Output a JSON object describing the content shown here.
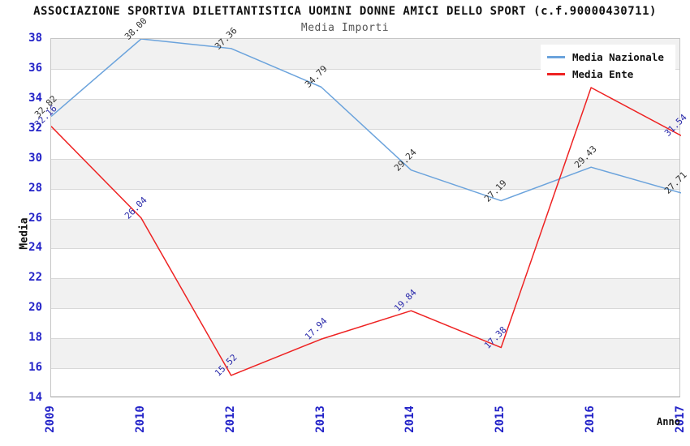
{
  "chart_data": {
    "type": "line",
    "title": "ASSOCIAZIONE SPORTIVA DILETTANTISTICA UOMINI DONNE AMICI DELLO SPORT (c.f.90000430711)",
    "subtitle": "Media Importi",
    "xlabel": "Anno",
    "ylabel": "Media",
    "categories": [
      "2009",
      "2010",
      "2012",
      "2013",
      "2014",
      "2015",
      "2016",
      "2017"
    ],
    "ylim": [
      14,
      38
    ],
    "ytick_step": 2,
    "grid": "horizontal-bands",
    "legend_position": "top-right",
    "colors": {
      "axis_tick": "#2323c8",
      "band": "#f1f1f1",
      "gridline": "#d8d8d8",
      "title": "#111111",
      "subtitle": "#555555"
    },
    "series": [
      {
        "name": "Media Nazionale",
        "color": "#6ba3dc",
        "label_color": "#333333",
        "values": [
          32.82,
          38.0,
          37.36,
          34.79,
          29.24,
          27.19,
          29.43,
          27.71
        ],
        "point_labels": [
          "32.82",
          "38.00",
          "37.36",
          "34.79",
          "29.24",
          "27.19",
          "29.43",
          "27.71"
        ]
      },
      {
        "name": "Media Ente",
        "color": "#ee2222",
        "label_color": "#2a2aaa",
        "values": [
          32.16,
          26.04,
          15.52,
          17.94,
          19.84,
          17.38,
          34.75,
          31.54
        ],
        "point_labels": [
          "32.16",
          "26.04",
          "15.52",
          "17.94",
          "19.84",
          "17.38",
          "",
          "31.54"
        ]
      }
    ]
  }
}
